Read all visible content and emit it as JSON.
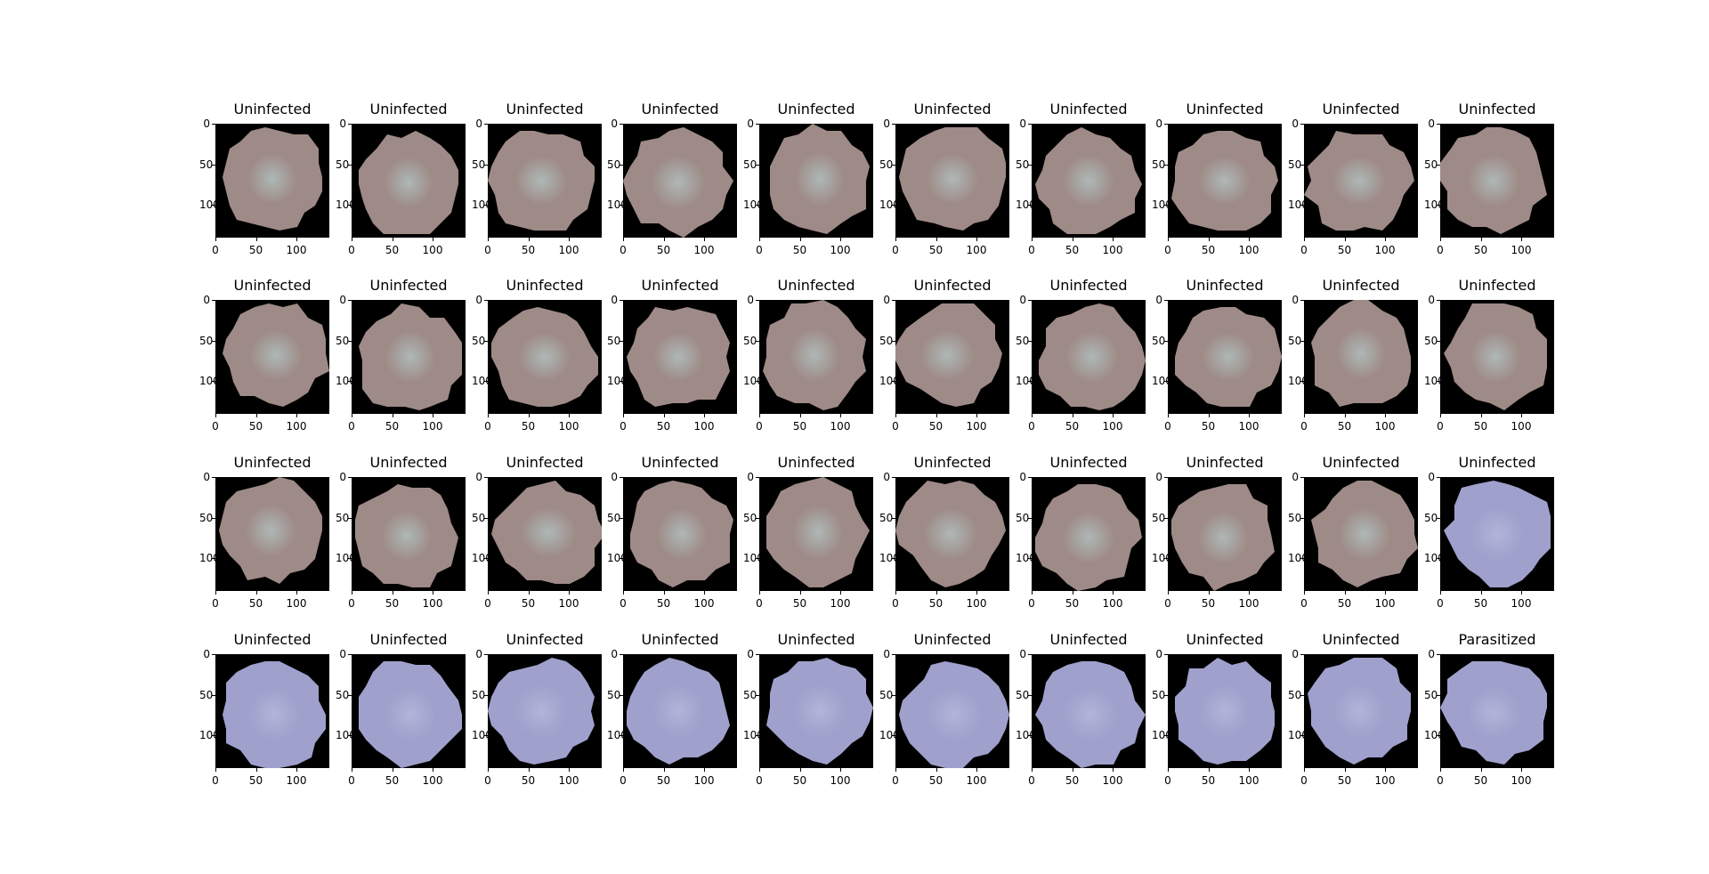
{
  "figure": {
    "panels": [
      {
        "title": "Uninfected",
        "tone": "pink"
      },
      {
        "title": "Uninfected",
        "tone": "pink"
      },
      {
        "title": "Uninfected",
        "tone": "pink"
      },
      {
        "title": "Uninfected",
        "tone": "pink"
      },
      {
        "title": "Uninfected",
        "tone": "pink"
      },
      {
        "title": "Uninfected",
        "tone": "pink"
      },
      {
        "title": "Uninfected",
        "tone": "pink"
      },
      {
        "title": "Uninfected",
        "tone": "pink"
      },
      {
        "title": "Uninfected",
        "tone": "pink"
      },
      {
        "title": "Uninfected",
        "tone": "pink"
      },
      {
        "title": "Uninfected",
        "tone": "pink"
      },
      {
        "title": "Uninfected",
        "tone": "pink"
      },
      {
        "title": "Uninfected",
        "tone": "pink"
      },
      {
        "title": "Uninfected",
        "tone": "pink"
      },
      {
        "title": "Uninfected",
        "tone": "pink"
      },
      {
        "title": "Uninfected",
        "tone": "pink"
      },
      {
        "title": "Uninfected",
        "tone": "pink"
      },
      {
        "title": "Uninfected",
        "tone": "pink"
      },
      {
        "title": "Uninfected",
        "tone": "pink"
      },
      {
        "title": "Uninfected",
        "tone": "pink"
      },
      {
        "title": "Uninfected",
        "tone": "pink"
      },
      {
        "title": "Uninfected",
        "tone": "pink"
      },
      {
        "title": "Uninfected",
        "tone": "pink"
      },
      {
        "title": "Uninfected",
        "tone": "pink"
      },
      {
        "title": "Uninfected",
        "tone": "pink"
      },
      {
        "title": "Uninfected",
        "tone": "pink"
      },
      {
        "title": "Uninfected",
        "tone": "pink"
      },
      {
        "title": "Uninfected",
        "tone": "pink"
      },
      {
        "title": "Uninfected",
        "tone": "pink"
      },
      {
        "title": "Uninfected",
        "tone": "purple"
      },
      {
        "title": "Uninfected",
        "tone": "purple"
      },
      {
        "title": "Uninfected",
        "tone": "purple"
      },
      {
        "title": "Uninfected",
        "tone": "purple"
      },
      {
        "title": "Uninfected",
        "tone": "purple"
      },
      {
        "title": "Uninfected",
        "tone": "purple"
      },
      {
        "title": "Uninfected",
        "tone": "purple"
      },
      {
        "title": "Uninfected",
        "tone": "purple"
      },
      {
        "title": "Uninfected",
        "tone": "purple"
      },
      {
        "title": "Uninfected",
        "tone": "purple"
      },
      {
        "title": "Parasitized",
        "tone": "purple"
      }
    ],
    "x_ticks": [
      "0",
      "50",
      "100"
    ],
    "y_ticks": [
      "0",
      "50",
      "100"
    ],
    "colors": {
      "background": "#000000",
      "pink_cell": "#9e8a86",
      "pink_center": "#aeb8b6",
      "purple_cell": "#9fa0cc",
      "purple_center": "#b2b4d8"
    }
  }
}
